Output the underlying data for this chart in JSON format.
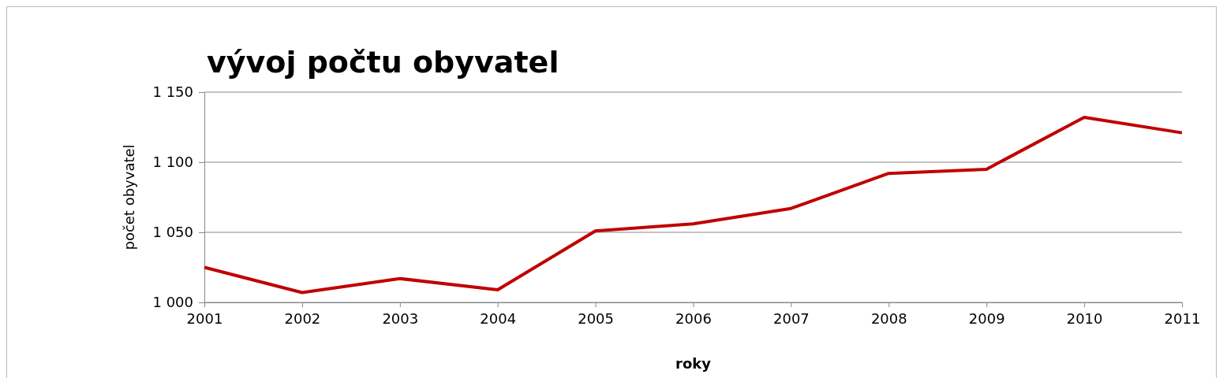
{
  "chart_data": {
    "type": "line",
    "title": "vývoj počtu obyvatel",
    "xlabel": "roky",
    "ylabel": "počet obyvatel",
    "x": [
      2001,
      2002,
      2003,
      2004,
      2005,
      2006,
      2007,
      2008,
      2009,
      2010,
      2011
    ],
    "series": [
      {
        "color": "#c00000",
        "values": [
          1025,
          1007,
          1017,
          1009,
          1051,
          1056,
          1067,
          1092,
          1095,
          1132,
          1121
        ]
      }
    ],
    "xlim": [
      2001,
      2011
    ],
    "xticks": [
      2001,
      2002,
      2003,
      2004,
      2005,
      2006,
      2007,
      2008,
      2009,
      2010,
      2011
    ],
    "ylim": [
      1000,
      1150
    ],
    "yticks": [
      {
        "value": 1000,
        "label": "1 000"
      },
      {
        "value": 1050,
        "label": "1 050"
      },
      {
        "value": 1100,
        "label": "1 100"
      },
      {
        "value": 1150,
        "label": "1 150"
      }
    ],
    "grid": "y",
    "marker": "none",
    "line_style": "solid"
  }
}
